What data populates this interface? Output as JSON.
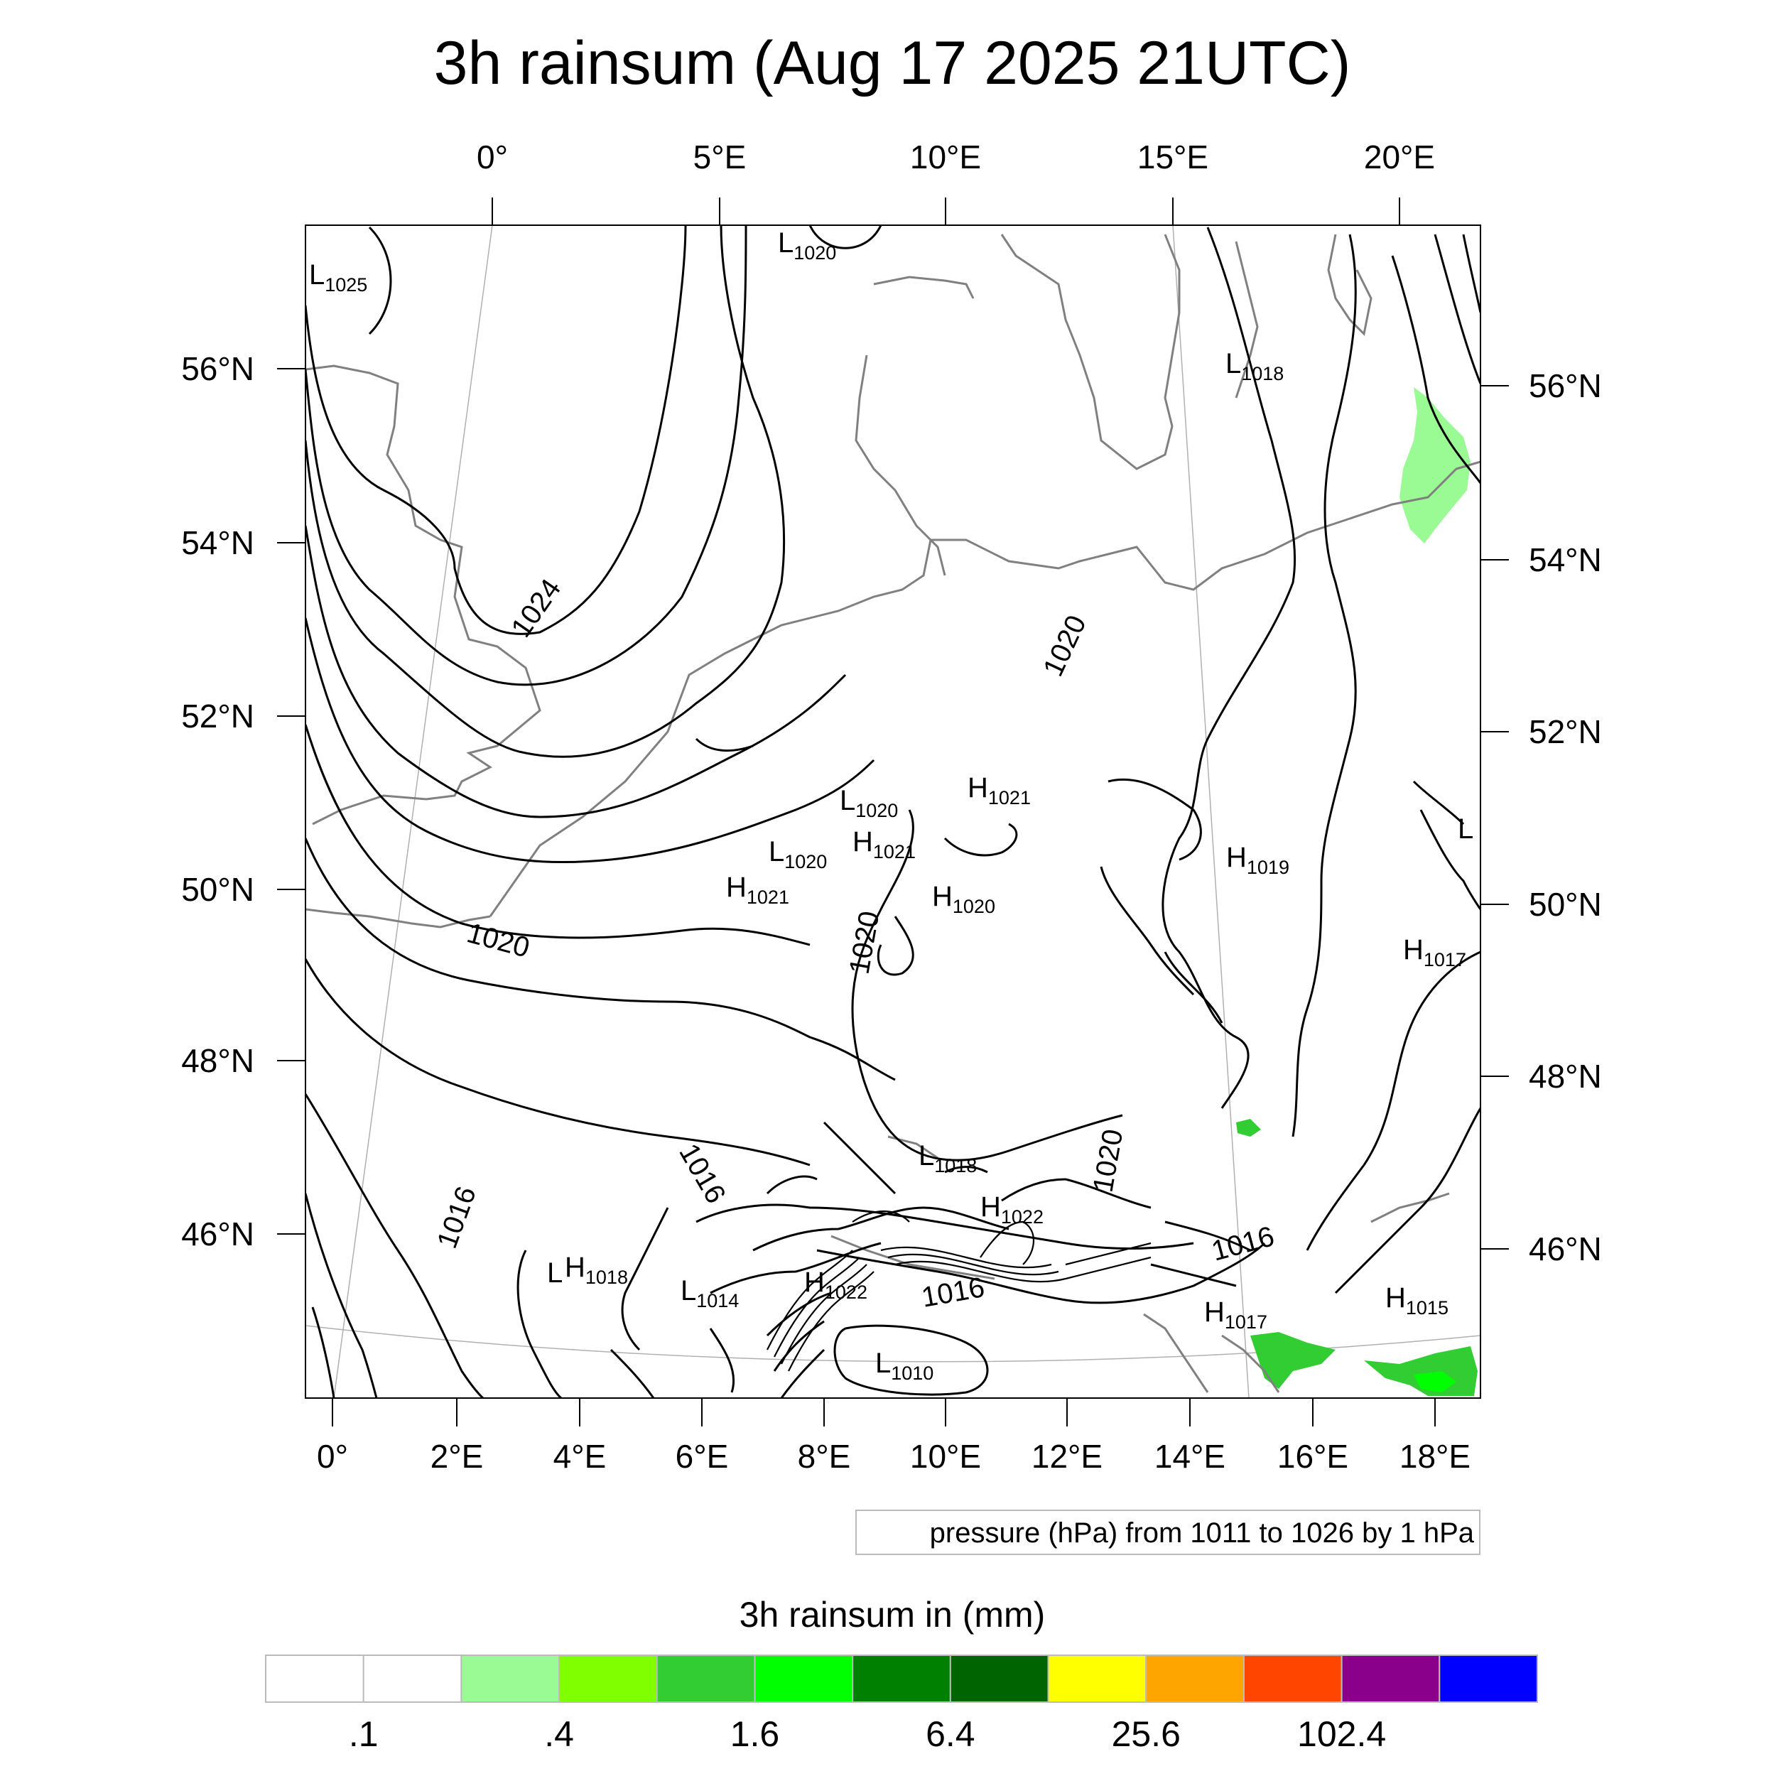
{
  "title": "3h rainsum (Aug 17 2025 21UTC)",
  "axes": {
    "top_ticks": [
      "0°",
      "5°E",
      "10°E",
      "15°E",
      "20°E"
    ],
    "bottom_ticks": [
      "0°",
      "2°E",
      "4°E",
      "6°E",
      "8°E",
      "10°E",
      "12°E",
      "14°E",
      "16°E",
      "18°E"
    ],
    "left_ticks": [
      "56°N",
      "54°N",
      "52°N",
      "50°N",
      "48°N",
      "46°N"
    ],
    "right_ticks": [
      "56°N",
      "54°N",
      "52°N",
      "50°N",
      "48°N",
      "46°N"
    ]
  },
  "pressure_centers": [
    {
      "type": "L",
      "value": "1025"
    },
    {
      "type": "L",
      "value": "1020"
    },
    {
      "type": "L",
      "value": "1018"
    },
    {
      "type": "H",
      "value": "1021"
    },
    {
      "type": "L",
      "value": "1020"
    },
    {
      "type": "H",
      "value": "1021"
    },
    {
      "type": "L",
      "value": "1020"
    },
    {
      "type": "H",
      "value": "1021"
    },
    {
      "type": "H",
      "value": "1020"
    },
    {
      "type": "H",
      "value": "1019"
    },
    {
      "type": "L",
      "value": ""
    },
    {
      "type": "H",
      "value": "1017"
    },
    {
      "type": "L",
      "value": "1018"
    },
    {
      "type": "H",
      "value": "1022"
    },
    {
      "type": "H",
      "value": "1018"
    },
    {
      "type": "L",
      "value": ""
    },
    {
      "type": "L",
      "value": "1014"
    },
    {
      "type": "H",
      "value": "1022"
    },
    {
      "type": "L",
      "value": "1010"
    },
    {
      "type": "H",
      "value": "1017"
    },
    {
      "type": "H",
      "value": "1015"
    }
  ],
  "contour_labels": [
    "1024",
    "1020",
    "1020",
    "1020",
    "1016",
    "1016",
    "1020",
    "1016",
    "1016"
  ],
  "legend_note": "pressure (hPa) from 1011 to 1026 by 1 hPa",
  "colorbar": {
    "title": "3h rainsum in (mm)",
    "colors": [
      "#ffffff",
      "#ffffff",
      "#9afa94",
      "#80ff00",
      "#32cd32",
      "#00ff00",
      "#008000",
      "#006400",
      "#ffff00",
      "#ffa500",
      "#ff4500",
      "#8b008b",
      "#0000ff"
    ],
    "labels": [
      ".1",
      ".4",
      "1.6",
      "6.4",
      "25.6",
      "102.4"
    ]
  },
  "colors": {
    "isobar": "#000000",
    "coast": "#808080",
    "rain_light": "#9afa94",
    "rain_mid": "#32cd32",
    "rain_bright": "#00ff00"
  }
}
